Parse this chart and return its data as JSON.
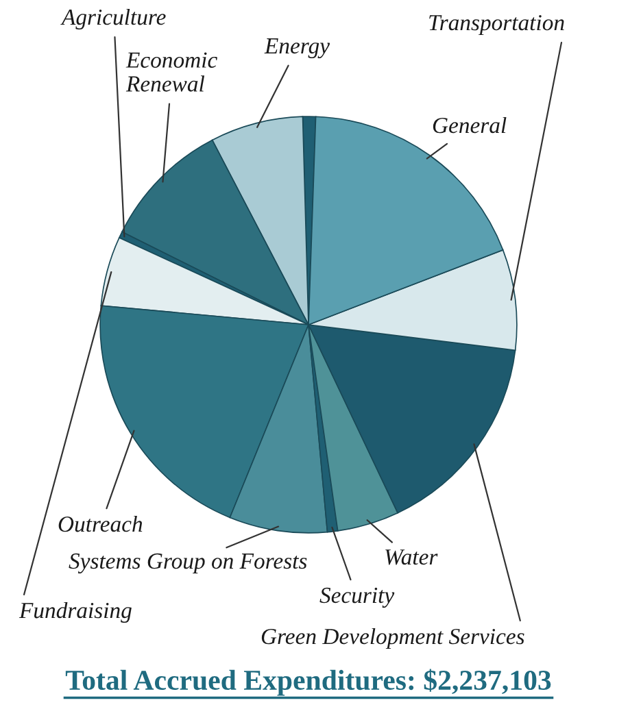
{
  "chart_data": {
    "type": "pie",
    "title": "Total Accrued Expenditures: $2,237,103",
    "categories": [
      null,
      "Energy",
      "Economic Renewal",
      "Agriculture",
      "Fundraising",
      "Outreach",
      "Systems Group on Forests",
      "Security",
      "Water",
      "Green Development Services",
      "Transportation",
      "General"
    ],
    "values": [
      1,
      7.2,
      10,
      0.5,
      5.4,
      20.3,
      7.6,
      0.8,
      4.8,
      16,
      7.8,
      18.6
    ],
    "colors": [
      "#1f5f73",
      "#a9cbd4",
      "#2e6f7e",
      "#1f5f73",
      "#e3eef0",
      "#2f7585",
      "#4a8d9a",
      "#1f5f73",
      "#4f9298",
      "#1e5a6e",
      "#d8e8ec",
      "#5a9fb0"
    ]
  }
}
